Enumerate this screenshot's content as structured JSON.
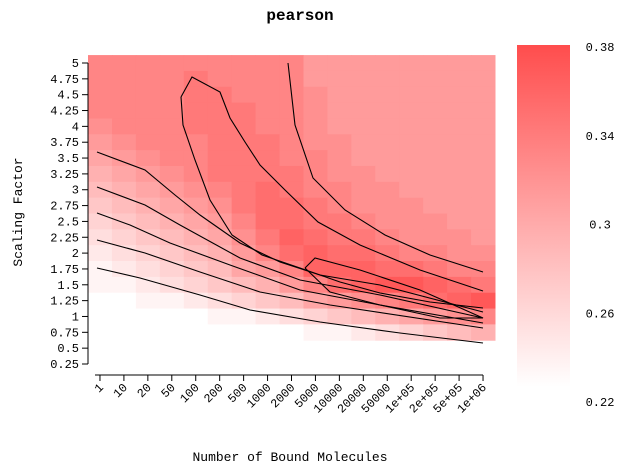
{
  "chart_data": {
    "type": "heatmap",
    "title": "pearson",
    "x_label": "Number of Bound Molecules",
    "y_label": "Scaling Factor",
    "categories": [
      "1",
      "10",
      "20",
      "50",
      "100",
      "200",
      "500",
      "1000",
      "2000",
      "5000",
      "10000",
      "20000",
      "50000",
      "1e+05",
      "2e+05",
      "5e+05",
      "1e+06"
    ],
    "y": [
      5,
      4.75,
      4.5,
      4.25,
      4,
      3.75,
      3.5,
      3.25,
      3,
      2.75,
      2.5,
      2.25,
      2,
      1.75,
      1.5,
      1.25,
      1,
      0.75
    ],
    "ylim": [
      0.25,
      5
    ],
    "yticks": [
      0.25,
      0.5,
      0.75,
      1,
      1.25,
      1.5,
      1.75,
      2,
      2.25,
      2.5,
      2.75,
      3,
      3.25,
      3.5,
      3.75,
      4,
      4.25,
      4.5,
      4.75,
      5
    ],
    "values": [
      [
        0.33,
        0.33,
        0.33,
        0.33,
        0.33,
        0.33,
        0.33,
        0.33,
        0.33,
        0.31,
        0.31,
        0.31,
        0.31,
        0.31,
        0.31,
        0.31,
        0.31
      ],
      [
        0.33,
        0.33,
        0.33,
        0.33,
        0.34,
        0.33,
        0.33,
        0.33,
        0.33,
        0.31,
        0.31,
        0.31,
        0.31,
        0.31,
        0.31,
        0.31,
        0.31
      ],
      [
        0.33,
        0.33,
        0.33,
        0.33,
        0.34,
        0.34,
        0.33,
        0.33,
        0.33,
        0.32,
        0.31,
        0.31,
        0.31,
        0.31,
        0.31,
        0.31,
        0.31
      ],
      [
        0.33,
        0.33,
        0.33,
        0.33,
        0.34,
        0.34,
        0.34,
        0.33,
        0.33,
        0.32,
        0.31,
        0.31,
        0.31,
        0.31,
        0.31,
        0.31,
        0.31
      ],
      [
        0.32,
        0.33,
        0.33,
        0.33,
        0.34,
        0.34,
        0.34,
        0.33,
        0.33,
        0.32,
        0.31,
        0.31,
        0.31,
        0.31,
        0.31,
        0.31,
        0.31
      ],
      [
        0.31,
        0.32,
        0.33,
        0.33,
        0.33,
        0.34,
        0.34,
        0.34,
        0.33,
        0.32,
        0.32,
        0.31,
        0.31,
        0.31,
        0.31,
        0.31,
        0.31
      ],
      [
        0.3,
        0.31,
        0.32,
        0.33,
        0.33,
        0.34,
        0.34,
        0.34,
        0.33,
        0.33,
        0.32,
        0.31,
        0.31,
        0.31,
        0.31,
        0.31,
        0.31
      ],
      [
        0.29,
        0.3,
        0.31,
        0.32,
        0.33,
        0.34,
        0.34,
        0.34,
        0.34,
        0.33,
        0.32,
        0.32,
        0.31,
        0.31,
        0.31,
        0.31,
        0.31
      ],
      [
        0.28,
        0.29,
        0.3,
        0.31,
        0.32,
        0.33,
        0.34,
        0.35,
        0.34,
        0.33,
        0.33,
        0.32,
        0.32,
        0.31,
        0.31,
        0.31,
        0.31
      ],
      [
        0.27,
        0.28,
        0.29,
        0.3,
        0.31,
        0.32,
        0.34,
        0.35,
        0.35,
        0.34,
        0.33,
        0.32,
        0.32,
        0.32,
        0.31,
        0.31,
        0.31
      ],
      [
        0.26,
        0.27,
        0.28,
        0.29,
        0.3,
        0.31,
        0.33,
        0.35,
        0.35,
        0.34,
        0.34,
        0.33,
        0.32,
        0.32,
        0.32,
        0.31,
        0.31
      ],
      [
        0.25,
        0.26,
        0.27,
        0.28,
        0.29,
        0.3,
        0.32,
        0.34,
        0.36,
        0.35,
        0.34,
        0.34,
        0.33,
        0.32,
        0.32,
        0.32,
        0.31
      ],
      [
        0.24,
        0.25,
        0.26,
        0.27,
        0.28,
        0.29,
        0.31,
        0.33,
        0.35,
        0.36,
        0.35,
        0.35,
        0.34,
        0.33,
        0.33,
        0.32,
        0.32
      ],
      [
        0.23,
        0.24,
        0.25,
        0.26,
        0.27,
        0.28,
        0.3,
        0.31,
        0.33,
        0.36,
        0.36,
        0.36,
        0.35,
        0.35,
        0.34,
        0.33,
        0.33
      ],
      [
        0.23,
        0.23,
        0.24,
        0.25,
        0.26,
        0.27,
        0.28,
        0.29,
        0.31,
        0.33,
        0.35,
        0.36,
        0.37,
        0.37,
        0.36,
        0.35,
        0.34
      ],
      [
        0.22,
        0.22,
        0.23,
        0.23,
        0.24,
        0.25,
        0.26,
        0.27,
        0.28,
        0.3,
        0.31,
        0.32,
        0.33,
        0.34,
        0.35,
        0.36,
        0.37
      ],
      [
        0.22,
        0.22,
        0.22,
        0.22,
        0.22,
        0.23,
        0.23,
        0.24,
        0.25,
        0.26,
        0.27,
        0.28,
        0.29,
        0.3,
        0.31,
        0.32,
        0.33
      ],
      [
        0.22,
        0.22,
        0.22,
        0.22,
        0.22,
        0.22,
        0.22,
        0.22,
        0.22,
        0.23,
        0.23,
        0.24,
        0.25,
        0.26,
        0.27,
        0.28,
        0.29
      ]
    ],
    "colorbar": {
      "lim": [
        0.22,
        0.38
      ],
      "ticks": [
        0.22,
        0.26,
        0.3,
        0.34,
        0.38
      ],
      "colors": [
        "#ffffff",
        "#ff4d4d"
      ]
    }
  }
}
